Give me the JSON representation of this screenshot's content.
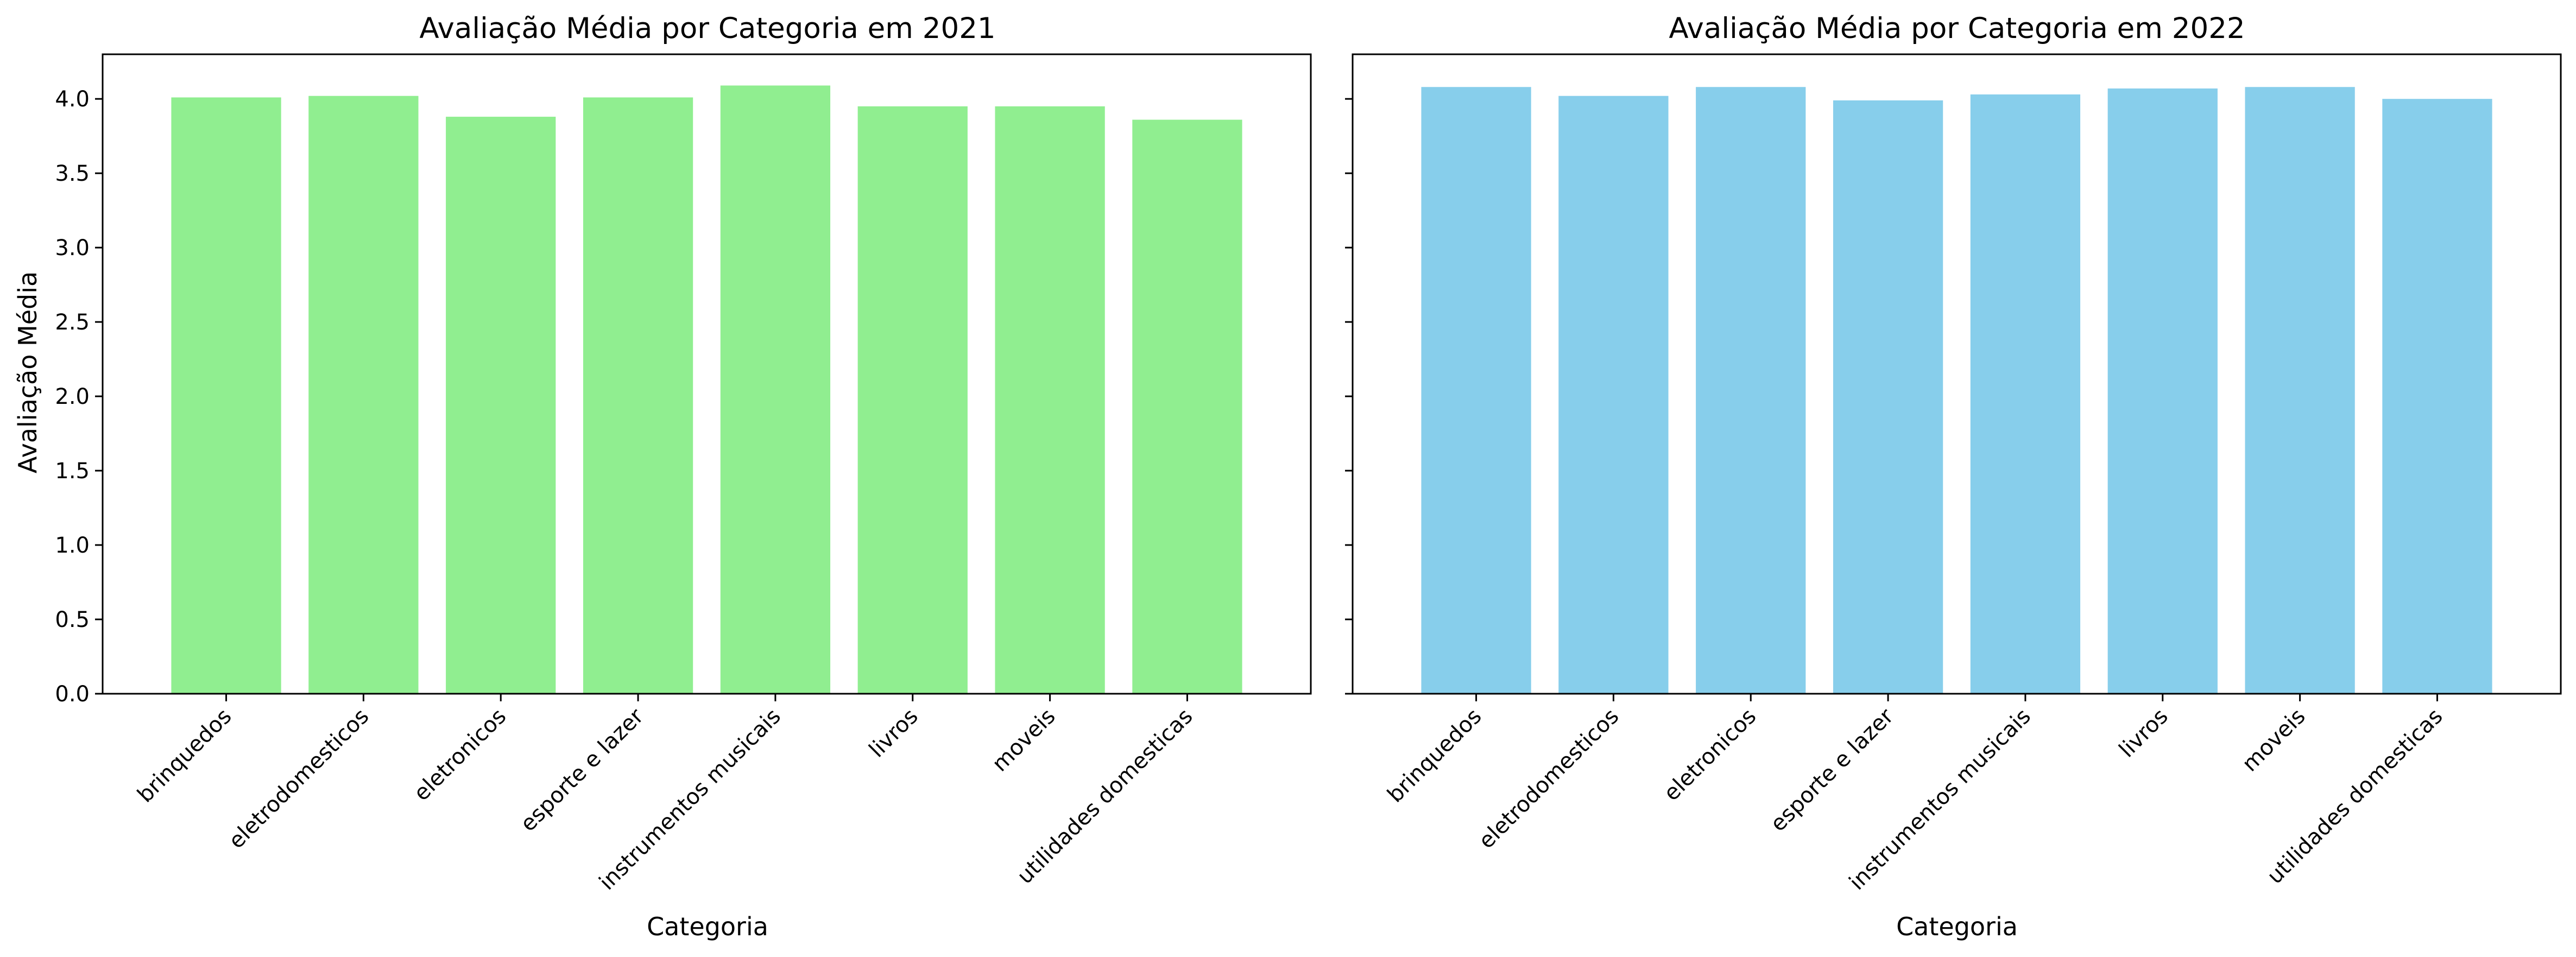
{
  "chart_data": [
    {
      "type": "bar",
      "title": "Avaliação Média por Categoria em 2021",
      "xlabel": "Categoria",
      "ylabel": "Avaliação Média",
      "ylim": [
        0,
        4.3
      ],
      "yticks": [
        "0.0",
        "0.5",
        "1.0",
        "1.5",
        "2.0",
        "2.5",
        "3.0",
        "3.5",
        "4.0"
      ],
      "categories": [
        "brinquedos",
        "eletrodomesticos",
        "eletronicos",
        "esporte e lazer",
        "instrumentos musicais",
        "livros",
        "moveis",
        "utilidades domesticas"
      ],
      "values": [
        4.01,
        4.02,
        3.88,
        4.01,
        4.09,
        3.95,
        3.95,
        3.86
      ],
      "color": "#90ee90",
      "grid": false
    },
    {
      "type": "bar",
      "title": "Avaliação Média por Categoria em 2022",
      "xlabel": "Categoria",
      "ylabel": "",
      "ylim": [
        0,
        4.3
      ],
      "yticks": [
        "",
        "",
        "",
        "",
        "",
        "",
        "",
        "",
        ""
      ],
      "categories": [
        "brinquedos",
        "eletrodomesticos",
        "eletronicos",
        "esporte e lazer",
        "instrumentos musicais",
        "livros",
        "moveis",
        "utilidades domesticas"
      ],
      "values": [
        4.08,
        4.02,
        4.08,
        3.99,
        4.03,
        4.07,
        4.08,
        4.0
      ],
      "color": "#87ceeb",
      "grid": false
    }
  ]
}
